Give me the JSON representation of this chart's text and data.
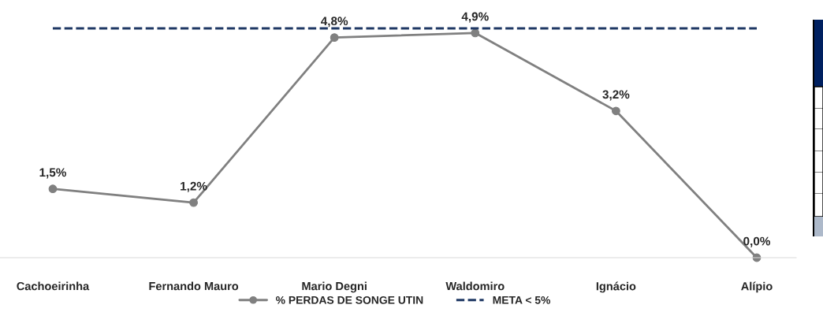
{
  "chart_data": {
    "type": "line",
    "categories": [
      "Cachoeirinha",
      "Fernando Mauro",
      "Mario Degni",
      "Waldomiro",
      "Ignácio",
      "Alípio"
    ],
    "series": [
      {
        "name": "% PERDAS DE SONGE UTIN",
        "color": "#808080",
        "values": [
          1.5,
          1.2,
          4.8,
          4.9,
          3.2,
          0.0
        ],
        "value_labels": [
          "1,5%",
          "1,2%",
          "4,8%",
          "4,9%",
          "3,2%",
          "0,0%"
        ]
      }
    ],
    "ref_lines": [
      {
        "axis": "y",
        "value": 5,
        "label": "META < 5%",
        "color": "#1f3864",
        "line_style": "dashed"
      }
    ],
    "marker": "circle",
    "line_style": "solid",
    "legend": "bottom",
    "grid": false,
    "tick_labels": "x"
  }
}
